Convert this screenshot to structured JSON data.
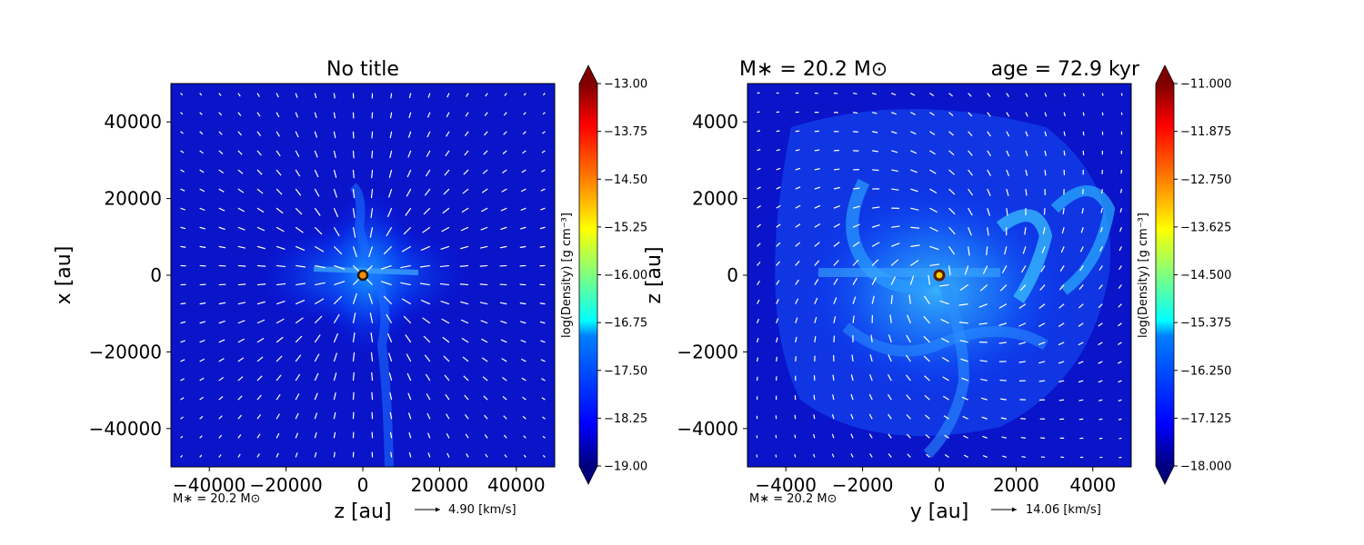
{
  "chart_data": [
    {
      "type": "heatmap",
      "title": "No title",
      "xlabel": "z [au]",
      "ylabel": "x [au]",
      "xlim": [
        -50000,
        50000
      ],
      "ylim": [
        -50000,
        50000
      ],
      "xticks": [
        -40000,
        -20000,
        0,
        20000,
        40000
      ],
      "yticks": [
        -40000,
        -20000,
        0,
        20000,
        40000
      ],
      "xtick_labels": [
        "−40000",
        "−20000",
        "0",
        "20000",
        "40000"
      ],
      "ytick_labels": [
        "−40000",
        "−20000",
        "0",
        "20000",
        "40000"
      ],
      "colorbar": {
        "label": "log(Density) [g cm⁻³]",
        "range": [
          -19.0,
          -13.0
        ],
        "ticks": [
          "−13.00",
          "−13.75",
          "−14.50",
          "−15.25",
          "−16.00",
          "−16.75",
          "−17.50",
          "−18.25",
          "−19.00"
        ],
        "colormap": "jet"
      },
      "star_position": [
        0,
        0
      ],
      "annotation_mass": "M∗ = 20.2 M⊙",
      "velocity_key": "4.90 [km/s]",
      "arrows": "white velocity field vectors"
    },
    {
      "type": "heatmap",
      "title_left": "M∗ = 20.2 M⊙",
      "title_right": "age = 72.9 kyr",
      "xlabel": "y [au]",
      "ylabel": "z [au]",
      "xlim": [
        -5000,
        5000
      ],
      "ylim": [
        -5000,
        5000
      ],
      "xticks": [
        -4000,
        -2000,
        0,
        2000,
        4000
      ],
      "yticks": [
        -4000,
        -2000,
        0,
        2000,
        4000
      ],
      "xtick_labels": [
        "−4000",
        "−2000",
        "0",
        "2000",
        "4000"
      ],
      "ytick_labels": [
        "−4000",
        "−2000",
        "0",
        "2000",
        "4000"
      ],
      "colorbar": {
        "label": "log(Density) [g cm⁻³]",
        "range": [
          -18.0,
          -11.0
        ],
        "ticks": [
          "−11.000",
          "−11.875",
          "−12.750",
          "−13.625",
          "−14.500",
          "−15.375",
          "−16.250",
          "−17.125",
          "−18.000"
        ],
        "colormap": "jet"
      },
      "star_position": [
        0,
        0
      ],
      "annotation_mass": "M∗ = 20.2 M⊙",
      "velocity_key": "14.06 [km/s]",
      "arrows": "white velocity field vectors"
    }
  ]
}
